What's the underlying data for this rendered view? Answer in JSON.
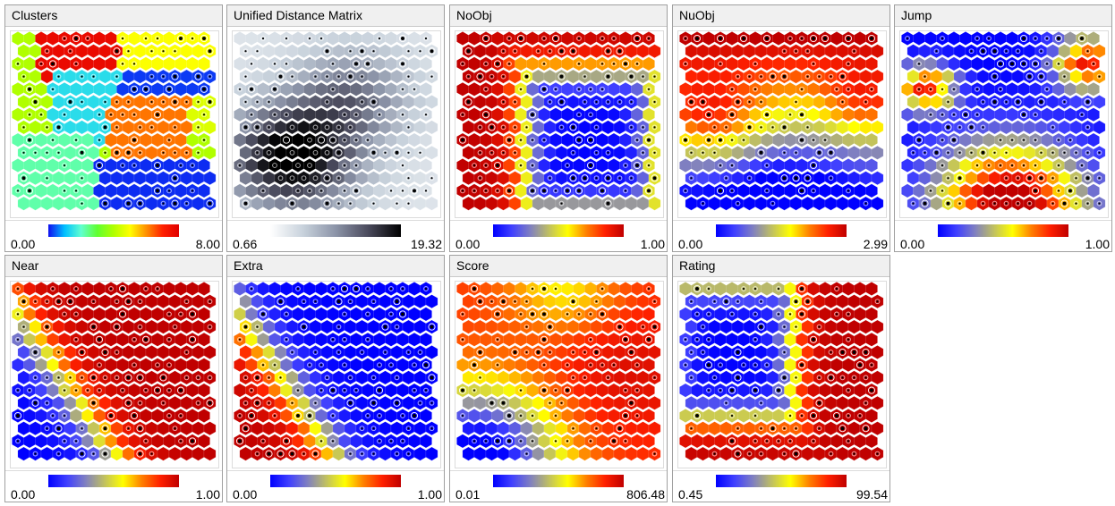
{
  "panels": [
    {
      "title": "Clusters",
      "min": "0.00",
      "max": "8.00",
      "palette": "rainbow",
      "colors": [
        "#1010f0",
        "#00c0ff",
        "#60ffd0",
        "#60ff30",
        "#b0ff00",
        "#ffff00",
        "#ff9000",
        "#ff2000",
        "#e00000"
      ]
    },
    {
      "title": "Unified Distance Matrix",
      "min": "0.66",
      "max": "19.32",
      "palette": "gray",
      "colors": [
        "#ffffff",
        "#c8d2dc",
        "#8c94a8",
        "#4a4a5c",
        "#000000"
      ]
    },
    {
      "title": "NoObj",
      "min": "0.00",
      "max": "1.00",
      "palette": "heat",
      "colors": [
        "#0000ff",
        "#4040ff",
        "#8080c0",
        "#c0c060",
        "#ffff00",
        "#ff8000",
        "#ff2000",
        "#c00000"
      ]
    },
    {
      "title": "NuObj",
      "min": "0.00",
      "max": "2.99",
      "palette": "heat",
      "colors": [
        "#0000ff",
        "#4040ff",
        "#8080c0",
        "#c0c060",
        "#ffff00",
        "#ff8000",
        "#ff2000",
        "#c00000"
      ]
    },
    {
      "title": "Jump",
      "min": "0.00",
      "max": "1.00",
      "palette": "heat",
      "colors": [
        "#0000ff",
        "#4040ff",
        "#8080c0",
        "#c0c060",
        "#ffff00",
        "#ff8000",
        "#ff2000",
        "#c00000"
      ]
    },
    {
      "title": "Near",
      "min": "0.00",
      "max": "1.00",
      "palette": "heat",
      "colors": [
        "#0000ff",
        "#4040ff",
        "#8080c0",
        "#c0c060",
        "#ffff00",
        "#ff8000",
        "#ff2000",
        "#c00000"
      ]
    },
    {
      "title": "Extra",
      "min": "0.00",
      "max": "1.00",
      "palette": "heat",
      "colors": [
        "#0000ff",
        "#4040ff",
        "#8080c0",
        "#c0c060",
        "#ffff00",
        "#ff8000",
        "#ff2000",
        "#c00000"
      ]
    },
    {
      "title": "Score",
      "min": "0.01",
      "max": "806.48",
      "palette": "heat",
      "colors": [
        "#0000ff",
        "#4040ff",
        "#8080c0",
        "#c0c060",
        "#ffff00",
        "#ff8000",
        "#ff2000",
        "#c00000"
      ]
    },
    {
      "title": "Rating",
      "min": "0.45",
      "max": "99.54",
      "palette": "heat",
      "colors": [
        "#0000ff",
        "#4040ff",
        "#8080c0",
        "#c0c060",
        "#ffff00",
        "#ff8000",
        "#ff2000",
        "#c00000"
      ]
    }
  ]
}
